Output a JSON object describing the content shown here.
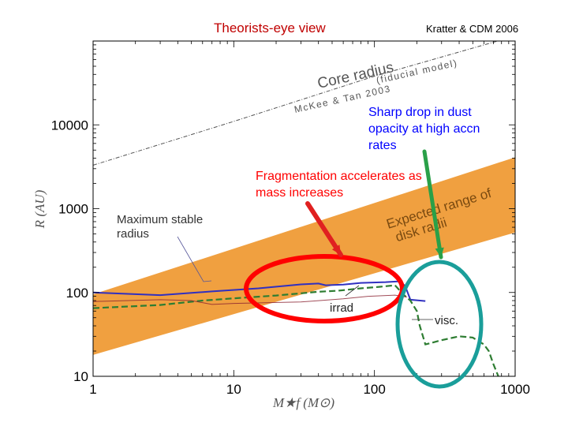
{
  "title": "Theorists-eye view",
  "credit": "Kratter & CDM 2006",
  "annotations": {
    "dust_drop": "Sharp drop in dust opacity at high accn rates",
    "fragmentation": "Fragmentation accelerates as mass increases",
    "max_stable_radius": "Maximum stable radius",
    "irrad": "irrad",
    "visc": "visc."
  },
  "colors": {
    "band": "#f0a040",
    "max_radius_line": "#3030c0",
    "visc_line": "#2e7d32",
    "highlight_red": "#ff0000",
    "highlight_teal": "#1a9e9a",
    "arrow_red": "#e02020",
    "arrow_green": "#2aa048",
    "title_red": "#c00000",
    "note_blue": "#0000ff"
  },
  "chart_data": {
    "type": "line",
    "xscale": "log",
    "yscale": "log",
    "xlim": [
      1,
      1000
    ],
    "ylim": [
      10,
      100000
    ],
    "xlabel": "M_{*f} (M_⊙)",
    "ylabel": "R (AU)",
    "xticks": [
      1,
      10,
      100,
      1000
    ],
    "xtick_labels": [
      "1",
      "10",
      "100",
      "1000"
    ],
    "yticks": [
      10,
      100,
      1000,
      10000
    ],
    "ytick_labels": [
      "10",
      "100",
      "1000",
      "10000"
    ],
    "band": {
      "name": "Expected range of disk radii",
      "lower": [
        [
          1,
          18
        ],
        [
          1000,
          520
        ]
      ],
      "upper": [
        [
          1,
          95
        ],
        [
          1000,
          4100
        ]
      ]
    },
    "series": [
      {
        "name": "Core radius (fiducial model) McKee & Tan 2003",
        "style": "dashdot",
        "label_text": [
          "Core radius",
          "(fiducial model)",
          "McKee & Tan 2003"
        ],
        "points": [
          [
            1,
            3300
          ],
          [
            10,
            11000
          ],
          [
            100,
            38000
          ],
          [
            1000,
            115000
          ]
        ]
      },
      {
        "name": "Maximum stable radius",
        "style": "solid",
        "points": [
          [
            1,
            100
          ],
          [
            3,
            93
          ],
          [
            7,
            103
          ],
          [
            15,
            112
          ],
          [
            30,
            125
          ],
          [
            40,
            128
          ],
          [
            45,
            122
          ],
          [
            60,
            124
          ],
          [
            80,
            130
          ],
          [
            120,
            133
          ],
          [
            150,
            136
          ],
          [
            165,
            120
          ],
          [
            180,
            82
          ],
          [
            230,
            79
          ]
        ]
      },
      {
        "name": "Maximum stable radius (visc.)",
        "style": "dashed",
        "points": [
          [
            1,
            65
          ],
          [
            3,
            71
          ],
          [
            6,
            80
          ],
          [
            10,
            85
          ],
          [
            20,
            92
          ],
          [
            40,
            102
          ],
          [
            55,
            105
          ],
          [
            80,
            112
          ],
          [
            110,
            117
          ],
          [
            140,
            122
          ],
          [
            160,
            95
          ],
          [
            180,
            80
          ],
          [
            200,
            60
          ],
          [
            210,
            40
          ],
          [
            230,
            24
          ],
          [
            300,
            27
          ],
          [
            400,
            30
          ],
          [
            500,
            29
          ],
          [
            600,
            24
          ],
          [
            650,
            20
          ],
          [
            700,
            14
          ],
          [
            760,
            10
          ]
        ]
      },
      {
        "name": "irrad",
        "style": "solid",
        "points": [
          [
            1,
            78
          ],
          [
            3,
            82
          ],
          [
            5,
            80
          ],
          [
            7,
            72
          ],
          [
            10,
            74
          ],
          [
            30,
            77
          ],
          [
            60,
            84
          ],
          [
            90,
            90
          ],
          [
            140,
            93
          ],
          [
            170,
            88
          ]
        ]
      }
    ]
  }
}
